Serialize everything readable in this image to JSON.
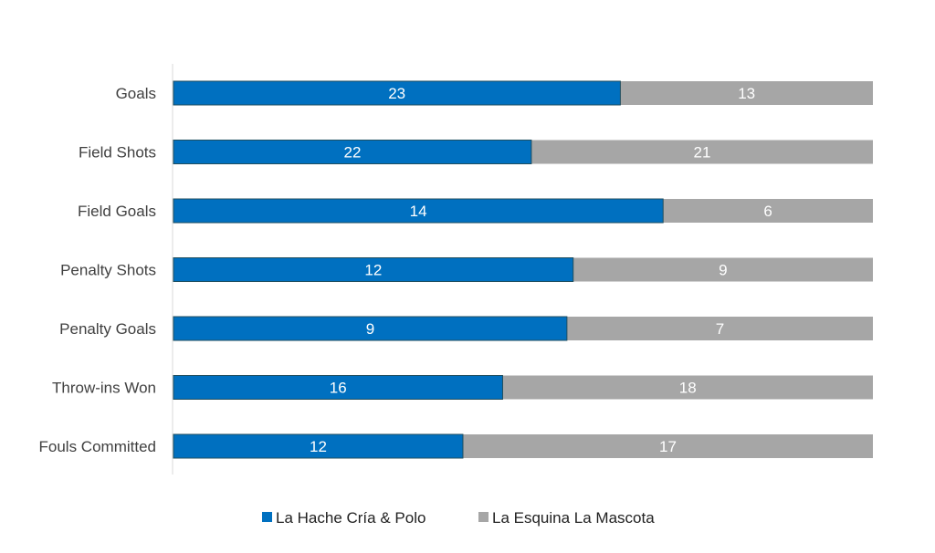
{
  "chart_data": {
    "type": "bar",
    "orientation": "horizontal",
    "stacking": "percent",
    "categories": [
      "Goals",
      "Field Shots",
      "Field Goals",
      "Penalty Shots",
      "Penalty Goals",
      "Throw-ins Won",
      "Fouls Committed"
    ],
    "series": [
      {
        "name": "La Hache Cría & Polo",
        "color": "#0070c0",
        "values": [
          23,
          22,
          14,
          12,
          9,
          16,
          12
        ]
      },
      {
        "name": "La Esquina La Mascota",
        "color": "#a6a6a6",
        "values": [
          13,
          21,
          6,
          9,
          7,
          18,
          17
        ]
      }
    ],
    "legend": "bottom",
    "grid": false
  }
}
